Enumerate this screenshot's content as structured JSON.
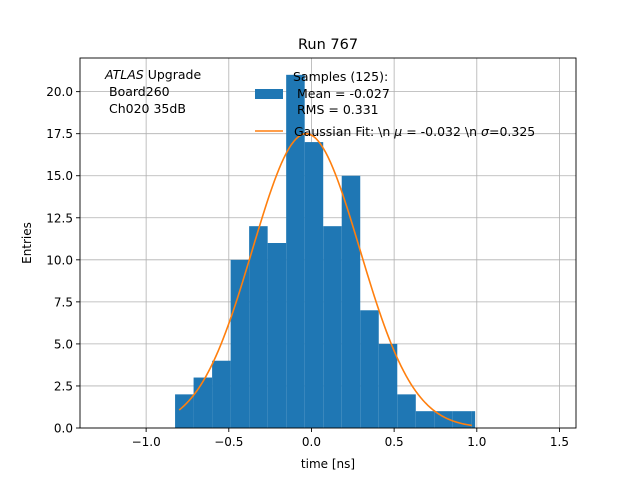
{
  "chart_data": {
    "type": "bar",
    "title": "Run 767",
    "xlabel": "time [ns]",
    "ylabel": "Entries",
    "xlim": [
      -1.4,
      1.6
    ],
    "ylim": [
      0,
      22
    ],
    "xticks": [
      -1.0,
      -0.5,
      0.0,
      0.5,
      1.0,
      1.5
    ],
    "xtick_labels": [
      "−1.0",
      "−0.5",
      "0.0",
      "0.5",
      "1.0",
      "1.5"
    ],
    "yticks": [
      0,
      2.5,
      5,
      7.5,
      10,
      12.5,
      15,
      17.5,
      20
    ],
    "ytick_labels": [
      "0.0",
      "2.5",
      "5.0",
      "7.5",
      "10.0",
      "12.5",
      "15.0",
      "17.5",
      "20.0"
    ],
    "grid": true,
    "legend_placement": "top-right",
    "colors": {
      "bars": "#1f77b4",
      "fit": "#ff7f0e"
    },
    "series": [
      {
        "name": "Samples (125):\n Mean = -0.027\n RMS = 0.331",
        "kind": "histogram",
        "bin_edges": [
          -0.825,
          -0.713,
          -0.601,
          -0.489,
          -0.377,
          -0.265,
          -0.153,
          -0.041,
          0.071,
          0.183,
          0.295,
          0.407,
          0.519,
          0.631,
          0.743,
          0.855,
          0.967,
          0.99
        ],
        "values": [
          2,
          3,
          4,
          10,
          12,
          11,
          21,
          17,
          12,
          15,
          7,
          5,
          2,
          1,
          1,
          1,
          1
        ]
      },
      {
        "name": "Gaussian Fit: \\n $\\mu$ = -0.032 \\n $\\sigma$=0.325",
        "kind": "gaussian",
        "amplitude": 17.5,
        "mu": -0.032,
        "sigma": 0.325,
        "x_range": [
          -0.8,
          0.97
        ]
      }
    ],
    "annotation": {
      "italic": "ATLAS",
      "normal": " Upgrade",
      "line2": "Board260",
      "line3": "Ch020 35dB"
    },
    "legend": {
      "samples_line1": "Samples (125):",
      "samples_line2": "Mean = -0.027",
      "samples_line3": "RMS = 0.331",
      "fit_pre_mu": "Gaussian Fit: \\n ",
      "fit_mu": "μ",
      "fit_mid": " = -0.032 \\n ",
      "fit_sigma": "σ",
      "fit_post": "=0.325"
    }
  }
}
